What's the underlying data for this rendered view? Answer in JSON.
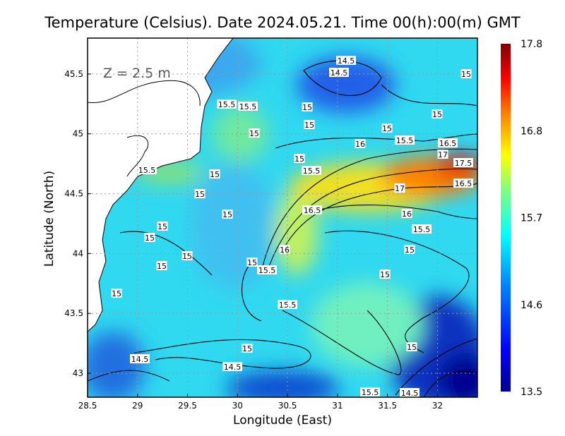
{
  "chart_data": {
    "type": "heatmap",
    "title": "Temperature (Celsius). Date 2024.05.21. Time 00(h):00(m) GMT",
    "xlabel": "Longitude (East)",
    "ylabel": "Latitude (North)",
    "annotation": "Z = 2.5 m",
    "xlim": [
      28.5,
      32.4
    ],
    "ylim": [
      42.8,
      45.8
    ],
    "x_ticks": [
      "28.5",
      "29",
      "29.5",
      "30",
      "30.5",
      "31",
      "31.5",
      "32"
    ],
    "x_tick_values": [
      28.5,
      29,
      29.5,
      30,
      30.5,
      31,
      31.5,
      32
    ],
    "y_ticks": [
      "45.5",
      "45",
      "44.5",
      "44",
      "43.5",
      "43"
    ],
    "y_tick_values": [
      45.5,
      45,
      44.5,
      44,
      43.5,
      43
    ],
    "grid": true,
    "colorbar": {
      "range": [
        13.5,
        17.8
      ],
      "ticks": [
        "17.8",
        "16.8",
        "15.7",
        "14.6",
        "13.5"
      ],
      "colors": [
        "#00008f",
        "#0000ff",
        "#0080ff",
        "#00ffff",
        "#80ff80",
        "#ffff00",
        "#ff8000",
        "#ff0000",
        "#800000"
      ],
      "placement": "right"
    },
    "contour_levels": [
      14.5,
      15,
      15.5,
      16,
      16.5,
      17,
      17.5
    ],
    "contour_labels": [
      "14.5",
      "14.5",
      "15",
      "15.5",
      "15.5",
      "15",
      "15",
      "15",
      "15",
      "15",
      "15.5",
      "16",
      "16.5",
      "15",
      "17",
      "17.5",
      "15.5",
      "15.5",
      "15",
      "16.5",
      "17",
      "15",
      "16.5",
      "16",
      "15",
      "15",
      "15.5",
      "15",
      "16",
      "15",
      "15",
      "15",
      "15",
      "15.5",
      "15",
      "15",
      "15.5",
      "15",
      "15",
      "14.5",
      "14.5",
      "15.5",
      "14.5"
    ]
  }
}
